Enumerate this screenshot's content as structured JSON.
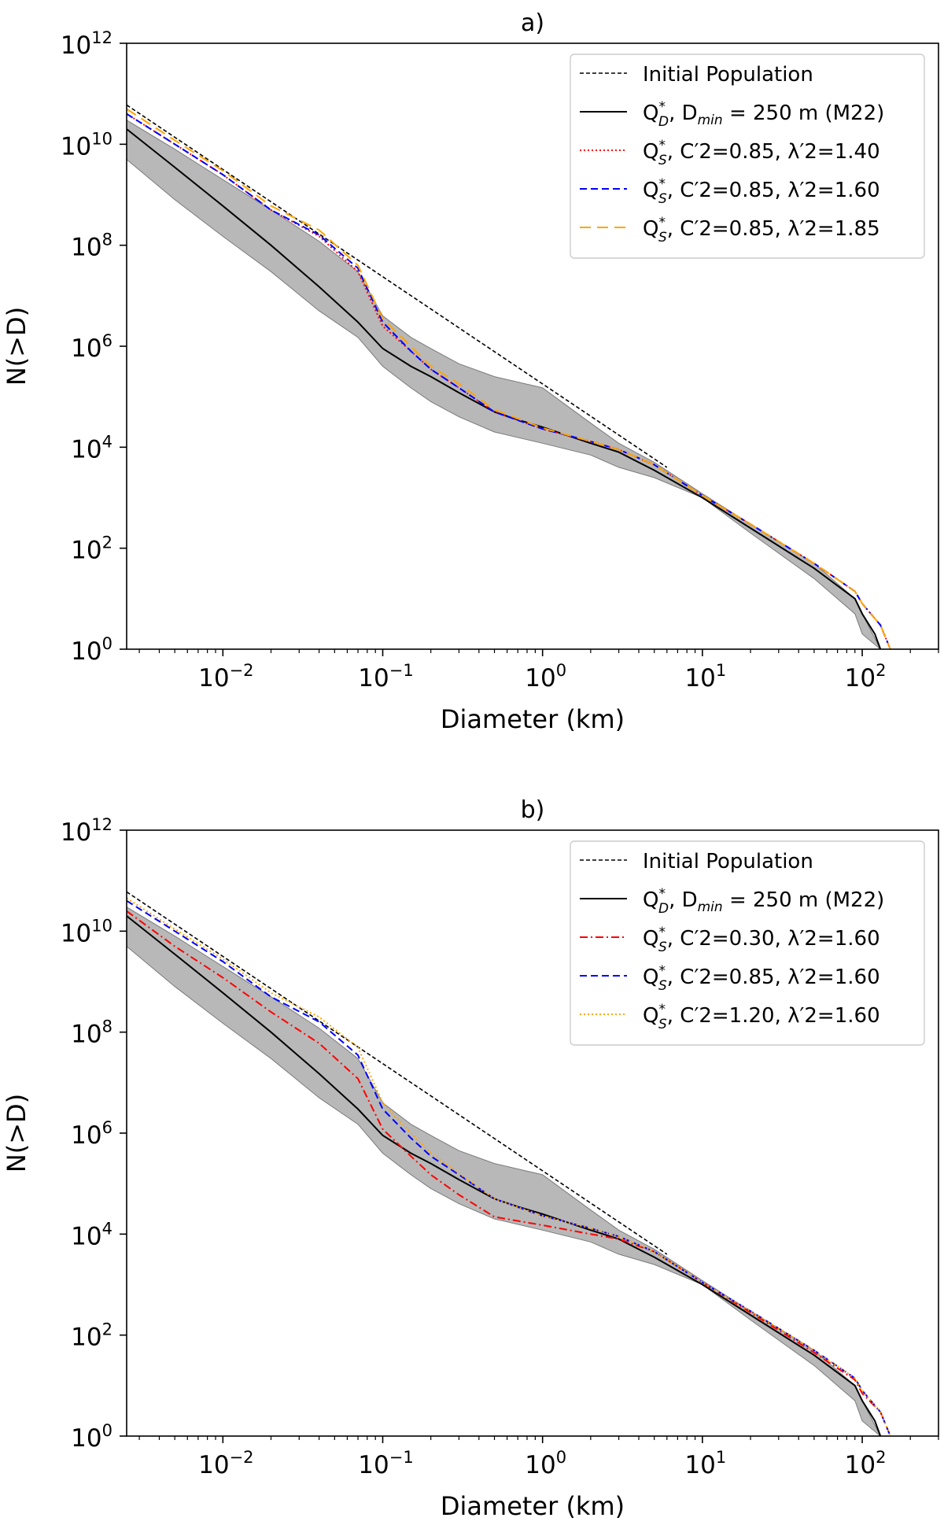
{
  "chart_data": [
    {
      "type": "line",
      "panel_title": "a)",
      "xlabel": "Diameter (km)",
      "ylabel": "N(>D)",
      "xscale": "log",
      "yscale": "log",
      "xlim": [
        0.0025,
        300
      ],
      "ylim": [
        1,
        1000000000000.0
      ],
      "xticks": [
        0.01,
        0.1,
        1,
        10,
        100
      ],
      "yticks": [
        1,
        100,
        10000,
        1000000,
        100000000,
        10000000000,
        1000000000000
      ],
      "legend_position": "top-right",
      "band": {
        "name": "range",
        "color": "#a0a0a0",
        "x": [
          0.0025,
          0.005,
          0.01,
          0.02,
          0.04,
          0.07,
          0.1,
          0.15,
          0.2,
          0.3,
          0.5,
          1,
          2,
          3,
          5,
          10,
          20,
          50,
          90,
          100,
          130
        ],
        "upper": [
          30000000000.0,
          8000000000.0,
          2000000000.0,
          500000000.0,
          120000000.0,
          30000000.0,
          4000000.0,
          1500000.0,
          900000.0,
          450000.0,
          250000.0,
          150000.0,
          30000.0,
          12000.0,
          5000.0,
          1200.0,
          300,
          50,
          10,
          5,
          1
        ],
        "lower": [
          5000000000.0,
          800000000.0,
          150000000.0,
          30000000.0,
          5000000.0,
          1500000.0,
          400000.0,
          150000.0,
          80000.0,
          40000.0,
          20000.0,
          12000.0,
          7000.0,
          4000.0,
          2500.0,
          1000.0,
          200,
          25,
          5,
          2,
          1
        ]
      },
      "series": [
        {
          "name": "Initial Population",
          "label_main": "Initial Population",
          "label_params": "",
          "style": "dashed-fine",
          "color": "#000000",
          "x": [
            0.0025,
            6
          ],
          "y": [
            60000000000.0,
            4000.0
          ]
        },
        {
          "name": "Q*_D, D_min = 250 m (M22)",
          "label_main": "Q",
          "label_sup": "*",
          "label_sub": "D",
          "label_params": ", D",
          "label_sub2": "min",
          "label_tail": " = 250 m (M22)",
          "style": "solid",
          "color": "#000000",
          "x": [
            0.0025,
            0.005,
            0.01,
            0.02,
            0.04,
            0.07,
            0.1,
            0.15,
            0.2,
            0.3,
            0.5,
            0.7,
            1,
            2,
            3,
            4,
            5,
            10,
            20,
            50,
            90,
            100,
            120,
            130
          ],
          "y": [
            20000000000.0,
            3500000000.0,
            600000000.0,
            100000000.0,
            15000000.0,
            3000000.0,
            900000.0,
            400000.0,
            250000.0,
            120000.0,
            50000.0,
            35000.0,
            25000.0,
            12000.0,
            8000.0,
            5000.0,
            3500.0,
            1000.0,
            250,
            40,
            10,
            5,
            2,
            1
          ]
        },
        {
          "name": "Q*_S, C'2=0.85, lambda'2=1.40",
          "label_main": "Q",
          "label_sup": "*",
          "label_sub": "S",
          "label_params": ", C′2=0.85, λ′2=1.40",
          "style": "dotted",
          "color": "#ff0000",
          "x": [
            0.0025,
            0.005,
            0.01,
            0.02,
            0.04,
            0.07,
            0.1,
            0.15,
            0.2,
            0.3,
            0.5,
            1,
            2,
            3,
            5,
            10,
            20,
            50,
            90,
            100,
            130,
            150
          ],
          "y": [
            40000000000.0,
            10000000000.0,
            2500000000.0,
            500000000.0,
            150000000.0,
            30000000.0,
            2500000.0,
            800000.0,
            350000.0,
            150000.0,
            50000.0,
            23000.0,
            13000.0,
            9000.0,
            4500.0,
            1100.0,
            300,
            50,
            14,
            8,
            3,
            1
          ]
        },
        {
          "name": "Q*_S, C'2=0.85, lambda'2=1.60",
          "label_main": "Q",
          "label_sup": "*",
          "label_sub": "S",
          "label_params": ", C′2=0.85, λ′2=1.60",
          "style": "dashed",
          "color": "#0000ff",
          "x": [
            0.0025,
            0.005,
            0.01,
            0.02,
            0.04,
            0.07,
            0.1,
            0.15,
            0.2,
            0.3,
            0.5,
            1,
            2,
            3,
            5,
            10,
            20,
            50,
            90,
            100,
            130,
            150
          ],
          "y": [
            40000000000.0,
            10000000000.0,
            2500000000.0,
            500000000.0,
            160000000.0,
            35000000.0,
            3000000.0,
            800000.0,
            350000.0,
            150000.0,
            50000.0,
            23000.0,
            13000.0,
            9000.0,
            4500.0,
            1100.0,
            300,
            50,
            14,
            8,
            3,
            1
          ]
        },
        {
          "name": "Q*_S, C'2=0.85, lambda'2=1.85",
          "label_main": "Q",
          "label_sup": "*",
          "label_sub": "S",
          "label_params": ", C′2=0.85, λ′2=1.85",
          "style": "dashed-long",
          "color": "#ffa500",
          "x": [
            0.0025,
            0.005,
            0.01,
            0.02,
            0.04,
            0.07,
            0.1,
            0.15,
            0.2,
            0.3,
            0.5,
            1,
            2,
            3,
            5,
            10,
            20,
            50,
            90,
            100,
            130,
            150
          ],
          "y": [
            50000000000.0,
            12000000000.0,
            3000000000.0,
            600000000.0,
            200000000.0,
            40000000.0,
            3500000.0,
            1000000.0,
            400000.0,
            180000.0,
            55000.0,
            24000.0,
            13000.0,
            9000.0,
            4500.0,
            1100.0,
            300,
            50,
            14,
            8,
            3,
            1
          ]
        }
      ]
    },
    {
      "type": "line",
      "panel_title": "b)",
      "xlabel": "Diameter (km)",
      "ylabel": "N(>D)",
      "xscale": "log",
      "yscale": "log",
      "xlim": [
        0.0025,
        300
      ],
      "ylim": [
        1,
        1000000000000.0
      ],
      "xticks": [
        0.01,
        0.1,
        1,
        10,
        100
      ],
      "yticks": [
        1,
        100,
        10000,
        1000000,
        100000000,
        10000000000,
        1000000000000
      ],
      "legend_position": "top-right",
      "band": {
        "name": "range",
        "color": "#a0a0a0",
        "x": [
          0.0025,
          0.005,
          0.01,
          0.02,
          0.04,
          0.07,
          0.1,
          0.15,
          0.2,
          0.3,
          0.5,
          1,
          2,
          3,
          5,
          10,
          20,
          50,
          90,
          100,
          130
        ],
        "upper": [
          30000000000.0,
          8000000000.0,
          2000000000.0,
          500000000.0,
          120000000.0,
          30000000.0,
          4000000.0,
          1500000.0,
          900000.0,
          450000.0,
          250000.0,
          150000.0,
          30000.0,
          12000.0,
          5000.0,
          1200.0,
          300,
          50,
          10,
          5,
          1
        ],
        "lower": [
          5000000000.0,
          800000000.0,
          150000000.0,
          30000000.0,
          5000000.0,
          1500000.0,
          400000.0,
          150000.0,
          80000.0,
          40000.0,
          20000.0,
          12000.0,
          7000.0,
          4000.0,
          2500.0,
          1000.0,
          200,
          25,
          5,
          2,
          1
        ]
      },
      "series": [
        {
          "name": "Initial Population",
          "label_main": "Initial Population",
          "label_params": "",
          "style": "dashed-fine",
          "color": "#000000",
          "x": [
            0.0025,
            6
          ],
          "y": [
            60000000000.0,
            4000.0
          ]
        },
        {
          "name": "Q*_D, D_min = 250 m (M22)",
          "label_main": "Q",
          "label_sup": "*",
          "label_sub": "D",
          "label_params": ", D",
          "label_sub2": "min",
          "label_tail": " = 250 m (M22)",
          "style": "solid",
          "color": "#000000",
          "x": [
            0.0025,
            0.005,
            0.01,
            0.02,
            0.04,
            0.07,
            0.1,
            0.15,
            0.2,
            0.3,
            0.5,
            0.7,
            1,
            2,
            3,
            4,
            5,
            10,
            20,
            50,
            90,
            100,
            120,
            130
          ],
          "y": [
            20000000000.0,
            3500000000.0,
            600000000.0,
            100000000.0,
            15000000.0,
            3000000.0,
            900000.0,
            400000.0,
            250000.0,
            120000.0,
            50000.0,
            35000.0,
            25000.0,
            12000.0,
            8000.0,
            5000.0,
            3500.0,
            1000.0,
            250,
            40,
            10,
            5,
            2,
            1
          ]
        },
        {
          "name": "Q*_S, C'2=0.30, lambda'2=1.60",
          "label_main": "Q",
          "label_sup": "*",
          "label_sub": "S",
          "label_params": ", C′2=0.30, λ′2=1.60",
          "style": "dashdot",
          "color": "#ff0000",
          "x": [
            0.0025,
            0.005,
            0.01,
            0.02,
            0.04,
            0.07,
            0.1,
            0.15,
            0.2,
            0.3,
            0.5,
            1,
            2,
            3,
            5,
            10,
            20,
            50,
            90,
            100,
            130,
            150
          ],
          "y": [
            25000000000.0,
            5000000000.0,
            1200000000.0,
            250000000.0,
            60000000.0,
            12000000.0,
            1200000.0,
            350000.0,
            150000.0,
            60000.0,
            22000.0,
            15000.0,
            10000.0,
            8000.0,
            4500.0,
            1100.0,
            280,
            45,
            13,
            7,
            3,
            1
          ]
        },
        {
          "name": "Q*_S, C'2=0.85, lambda'2=1.60",
          "label_main": "Q",
          "label_sup": "*",
          "label_sub": "S",
          "label_params": ", C′2=0.85, λ′2=1.60",
          "style": "dashed",
          "color": "#0000ff",
          "x": [
            0.0025,
            0.005,
            0.01,
            0.02,
            0.04,
            0.07,
            0.1,
            0.15,
            0.2,
            0.3,
            0.5,
            1,
            2,
            3,
            5,
            10,
            20,
            50,
            90,
            100,
            130,
            150
          ],
          "y": [
            40000000000.0,
            10000000000.0,
            2500000000.0,
            500000000.0,
            160000000.0,
            35000000.0,
            3000000.0,
            800000.0,
            350000.0,
            150000.0,
            50000.0,
            23000.0,
            13000.0,
            9000.0,
            4500.0,
            1100.0,
            300,
            50,
            14,
            8,
            3,
            1
          ]
        },
        {
          "name": "Q*_S, C'2=1.20, lambda'2=1.60",
          "label_main": "Q",
          "label_sup": "*",
          "label_sub": "S",
          "label_params": ", C′2=1.20, λ′2=1.60",
          "style": "dotted",
          "color": "#ffa500",
          "x": [
            0.0025,
            0.005,
            0.01,
            0.02,
            0.04,
            0.07,
            0.1,
            0.15,
            0.2,
            0.3,
            0.5,
            1,
            2,
            3,
            5,
            10,
            20,
            50,
            90,
            100,
            130,
            150
          ],
          "y": [
            45000000000.0,
            11000000000.0,
            2800000000.0,
            600000000.0,
            200000000.0,
            50000000.0,
            4000000.0,
            1000000.0,
            400000.0,
            160000.0,
            50000.0,
            23000.0,
            13000.0,
            9000.0,
            4500.0,
            1100.0,
            300,
            50,
            14,
            8,
            3,
            1
          ]
        }
      ]
    }
  ]
}
